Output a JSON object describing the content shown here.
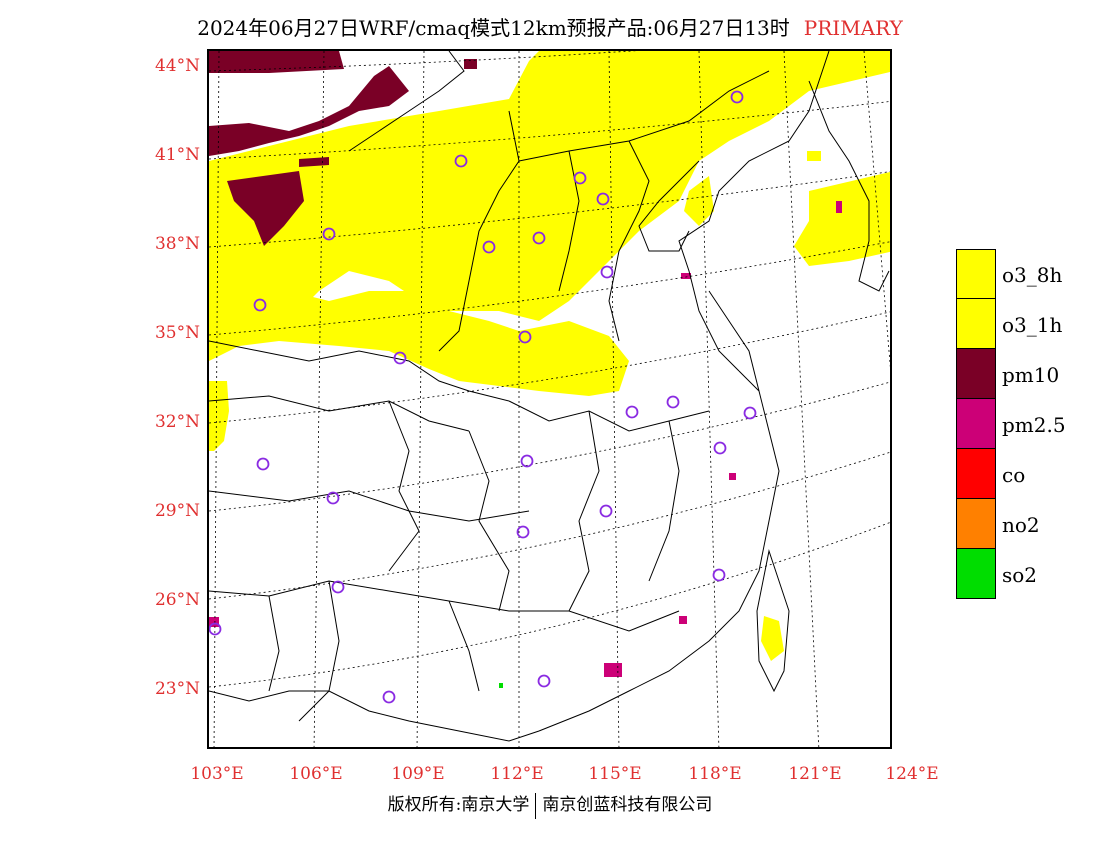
{
  "header": {
    "title": "2024年06月27日WRF/cmaq模式12km预报产品:06月27日13时",
    "tag": "PRIMARY"
  },
  "axes": {
    "lat_labels": [
      "44°N",
      "41°N",
      "38°N",
      "35°N",
      "32°N",
      "29°N",
      "26°N",
      "23°N"
    ],
    "lon_labels": [
      "103°E",
      "106°E",
      "109°E",
      "112°E",
      "115°E",
      "118°E",
      "121°E",
      "124°E"
    ]
  },
  "legend": [
    {
      "label": "o3_8h",
      "color": "#ffff00"
    },
    {
      "label": "o3_1h",
      "color": "#ffff00"
    },
    {
      "label": "pm10",
      "color": "#7a0026"
    },
    {
      "label": "pm2.5",
      "color": "#cc0077"
    },
    {
      "label": "co",
      "color": "#ff0000"
    },
    {
      "label": "no2",
      "color": "#ff8000"
    },
    {
      "label": "so2",
      "color": "#00dd00"
    }
  ],
  "footer": {
    "left": "版权所有:南京大学",
    "right": "南京创蓝科技有限公司"
  },
  "colors": {
    "accent": "#e03030",
    "station": "#8a2be2"
  }
}
